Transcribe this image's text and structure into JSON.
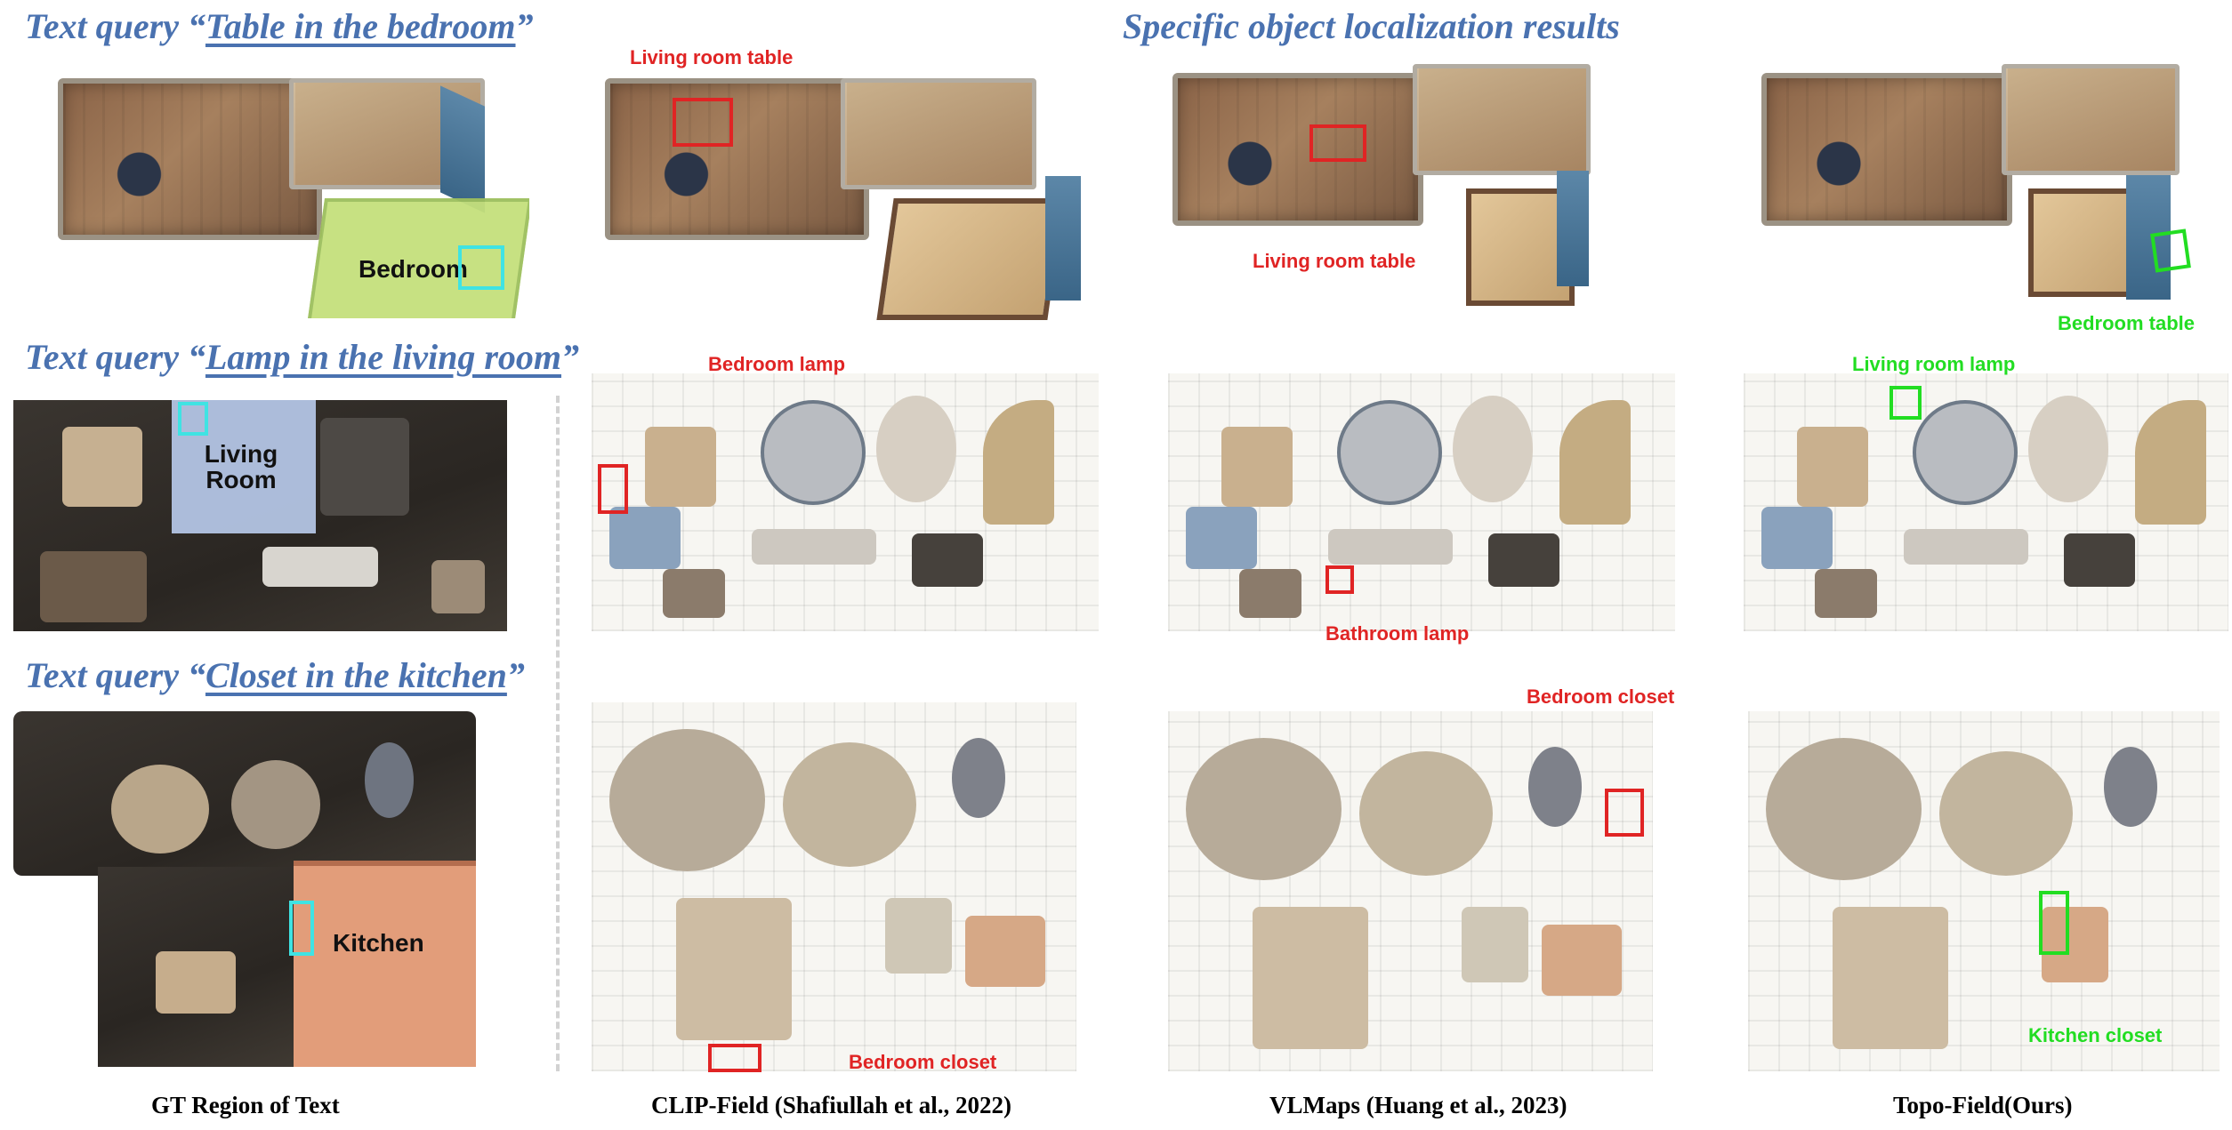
{
  "rows": [
    {
      "prefix": "Text query “",
      "phrase": "Table in the bedroom",
      "suffix": "”",
      "gt_label": "Bedroom"
    },
    {
      "prefix": "Text query “",
      "phrase": "Lamp in the living room",
      "suffix": "”",
      "gt_label": "Living Room"
    },
    {
      "prefix": "Text query “",
      "phrase": "Closet in the kitchen",
      "suffix": "”",
      "gt_label": "Kitchen"
    }
  ],
  "section_title": "Specific object localization results",
  "callouts": {
    "r1_clip": "Living room table",
    "r1_vlmaps": "Living room table",
    "r1_topo": "Bedroom table",
    "r2_clip": "Bedroom lamp",
    "r2_vlmaps": "Bathroom lamp",
    "r2_topo": "Living room lamp",
    "r3_clip": "Bedroom closet",
    "r3_vlmaps": "Bedroom closet",
    "r3_topo": "Kitchen closet"
  },
  "columns": [
    "GT Region of Text",
    "CLIP-Field (Shafiullah et al., 2022)",
    "VLMaps (Huang et al., 2023)",
    "Topo-Field(Ours)"
  ],
  "colors": {
    "title_blue": "#4a72b0",
    "wrong_red": "#e02424",
    "correct_green": "#22dd22",
    "gt_cyan": "#3fe3e3",
    "region_green": "#c7e37e",
    "region_blue": "#b3c4e4",
    "region_orange": "#e29d7a"
  }
}
